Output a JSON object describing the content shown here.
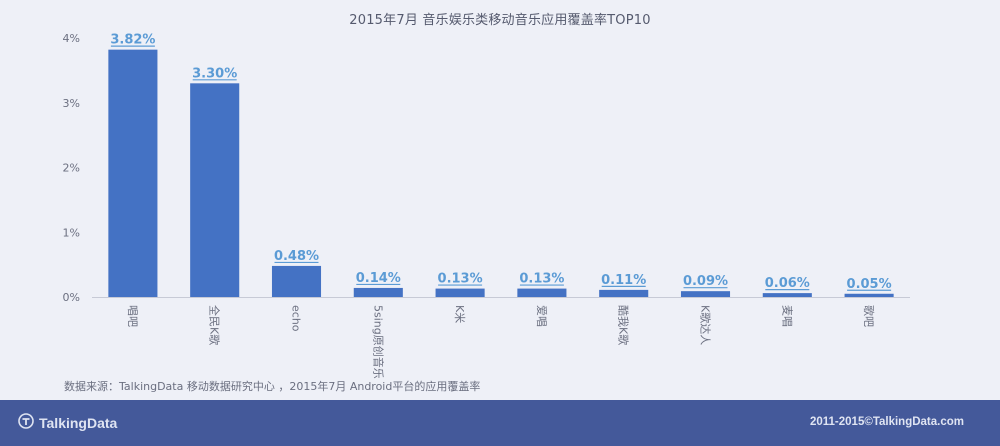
{
  "chart_data": {
    "type": "bar",
    "title": "2015年7月 音乐娱乐类移动音乐应用覆盖率TOP10",
    "categories": [
      "唱吧",
      "全民K歌",
      "echo",
      "5sing原创音乐",
      "K米",
      "爱唱",
      "酷我K歌",
      "K歌达人",
      "麦唱",
      "歌吧"
    ],
    "values": [
      3.82,
      3.3,
      0.48,
      0.14,
      0.13,
      0.13,
      0.11,
      0.09,
      0.06,
      0.05
    ],
    "value_labels": [
      "3.82%",
      "3.30%",
      "0.48%",
      "0.14%",
      "0.13%",
      "0.13%",
      "0.11%",
      "0.09%",
      "0.06%",
      "0.05%"
    ],
    "unit": "%",
    "ylim": [
      0,
      4
    ],
    "yticks": [
      0,
      1,
      2,
      3,
      4
    ],
    "ytick_labels": [
      "0%",
      "1%",
      "2%",
      "3%",
      "4%"
    ],
    "xlabel": "",
    "ylabel": "",
    "grid": false,
    "bar_color": "#4472c4",
    "label_color": "#5b9bd5"
  },
  "source": "数据来源：TalkingData 移动数据研究中心 ，2015年7月 Android平台的应用覆盖率",
  "footer": {
    "logo_text": "TalkingData",
    "copyright": "2011-2015©TalkingData.com",
    "background": "#44599a"
  }
}
